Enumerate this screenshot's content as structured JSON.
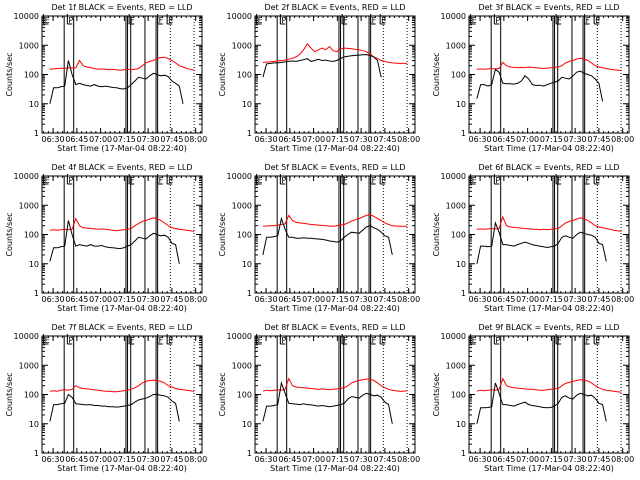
{
  "chart_data": {
    "type": "line",
    "layout": "3x3 grid",
    "y_scale": "log",
    "ylim": [
      1,
      10000
    ],
    "y_ticks": [
      "1",
      "10",
      "100",
      "1000",
      "10000"
    ],
    "ylabel": "Counts/sec",
    "xlabel": "Start Time (17-Mar-04 08:22:40)",
    "x_ticks": [
      "06:30",
      "06:45",
      "07:00",
      "07:15",
      "07:30",
      "07:45",
      "08:00"
    ],
    "x_tick_minutes": [
      390,
      405,
      420,
      435,
      450,
      465,
      480
    ],
    "xlim_minutes": [
      383,
      484
    ],
    "legend": {
      "black": "Events",
      "red": "LLD"
    },
    "series_colors": {
      "events": "#000000",
      "lld": "#ff0000"
    },
    "event_lines_minutes": [
      397,
      403,
      436,
      437,
      439,
      448,
      455,
      456
    ],
    "dotted_lines_minutes": [
      464,
      479
    ],
    "markers": [
      {
        "label": "E",
        "minute": 384
      },
      {
        "label": "P",
        "minute": 399
      },
      {
        "label": "F",
        "minute": 438
      },
      {
        "label": "F",
        "minute": 456
      },
      {
        "label": "E",
        "minute": 462
      }
    ],
    "panels": [
      {
        "title": "Det 1f BLACK = Events, RED = LLD",
        "lld": [
          150,
          155,
          160,
          165,
          160,
          170,
          165,
          170,
          300,
          200,
          180,
          170,
          160,
          150,
          155,
          150,
          145,
          150,
          145,
          140,
          145,
          150,
          145,
          150,
          160,
          200,
          250,
          280,
          300,
          350,
          380,
          390,
          350,
          300,
          250,
          200,
          180,
          160,
          150,
          140
        ],
        "events": [
          10,
          35,
          35,
          38,
          40,
          300,
          100,
          45,
          50,
          45,
          42,
          40,
          45,
          40,
          38,
          40,
          38,
          36,
          35,
          33,
          32,
          35,
          45,
          60,
          80,
          75,
          70,
          90,
          110,
          100,
          90,
          95,
          85,
          60,
          50,
          40,
          10,
          null,
          null,
          null
        ]
      },
      {
        "title": "Det 2f BLACK = Events, RED = LLD",
        "lld": [
          260,
          265,
          270,
          280,
          290,
          300,
          310,
          330,
          360,
          400,
          500,
          700,
          1100,
          800,
          600,
          700,
          800,
          700,
          900,
          650,
          600,
          750,
          800,
          780,
          760,
          720,
          700,
          650,
          600,
          500,
          400,
          350,
          300,
          280,
          260,
          250,
          245,
          240,
          240,
          240
        ],
        "events": [
          80,
          230,
          240,
          250,
          250,
          260,
          270,
          280,
          290,
          280,
          300,
          320,
          350,
          280,
          300,
          330,
          300,
          310,
          290,
          280,
          300,
          350,
          400,
          420,
          440,
          450,
          460,
          470,
          480,
          450,
          400,
          300,
          80,
          null,
          null,
          null,
          null,
          null,
          null,
          null
        ]
      },
      {
        "title": "Det 3f BLACK = Events, RED = LLD",
        "lld": [
          150,
          155,
          150,
          155,
          160,
          155,
          160,
          260,
          200,
          180,
          175,
          170,
          175,
          170,
          180,
          175,
          170,
          165,
          160,
          165,
          170,
          175,
          180,
          200,
          250,
          280,
          300,
          340,
          360,
          340,
          300,
          250,
          200,
          180,
          170,
          160,
          150,
          145,
          140,
          140
        ],
        "events": [
          15,
          45,
          45,
          40,
          45,
          150,
          120,
          50,
          48,
          48,
          47,
          50,
          60,
          90,
          70,
          45,
          42,
          43,
          40,
          45,
          50,
          55,
          60,
          80,
          75,
          70,
          90,
          120,
          130,
          110,
          100,
          90,
          70,
          50,
          12,
          null,
          null,
          null,
          null,
          null
        ]
      },
      {
        "title": "Det 4f BLACK = Events, RED = LLD",
        "lld": [
          140,
          145,
          140,
          145,
          150,
          145,
          150,
          350,
          200,
          170,
          165,
          160,
          155,
          150,
          155,
          150,
          145,
          140,
          135,
          140,
          145,
          150,
          160,
          200,
          240,
          280,
          300,
          340,
          370,
          350,
          300,
          250,
          200,
          170,
          160,
          150,
          145,
          140,
          135,
          130
        ],
        "events": [
          12,
          35,
          35,
          38,
          40,
          300,
          100,
          40,
          45,
          42,
          40,
          45,
          40,
          40,
          42,
          38,
          36,
          35,
          34,
          33,
          35,
          40,
          45,
          60,
          80,
          75,
          70,
          90,
          110,
          100,
          90,
          95,
          80,
          50,
          45,
          10,
          null,
          null,
          null,
          null
        ]
      },
      {
        "title": "Det 5f BLACK = Events, RED = LLD",
        "lld": [
          190,
          195,
          200,
          200,
          210,
          220,
          230,
          450,
          300,
          260,
          250,
          240,
          230,
          220,
          215,
          210,
          205,
          200,
          195,
          190,
          200,
          210,
          220,
          250,
          290,
          320,
          350,
          400,
          450,
          480,
          420,
          350,
          300,
          250,
          220,
          200,
          195,
          190,
          190,
          190
        ],
        "events": [
          20,
          80,
          80,
          85,
          90,
          350,
          150,
          80,
          80,
          75,
          75,
          78,
          75,
          74,
          72,
          70,
          68,
          65,
          60,
          58,
          55,
          60,
          80,
          100,
          120,
          115,
          110,
          140,
          180,
          200,
          170,
          150,
          120,
          90,
          80,
          20,
          null,
          null,
          null,
          null
        ]
      },
      {
        "title": "Det 6f BLACK = Events, RED = LLD",
        "lld": [
          150,
          155,
          150,
          155,
          160,
          155,
          160,
          400,
          200,
          180,
          175,
          170,
          165,
          160,
          155,
          150,
          150,
          145,
          150,
          145,
          150,
          155,
          160,
          200,
          250,
          280,
          300,
          340,
          370,
          350,
          300,
          250,
          200,
          180,
          170,
          160,
          150,
          140,
          135,
          130
        ],
        "events": [
          10,
          40,
          40,
          38,
          40,
          250,
          120,
          45,
          45,
          42,
          40,
          45,
          50,
          55,
          50,
          45,
          42,
          40,
          38,
          36,
          38,
          40,
          50,
          80,
          90,
          80,
          75,
          100,
          120,
          110,
          100,
          95,
          80,
          50,
          45,
          12,
          null,
          null,
          null,
          null
        ]
      },
      {
        "title": "Det 7f BLACK = Events, RED = LLD",
        "lld": [
          130,
          135,
          130,
          140,
          145,
          140,
          150,
          200,
          170,
          160,
          155,
          150,
          145,
          140,
          135,
          130,
          130,
          125,
          125,
          130,
          135,
          140,
          150,
          170,
          200,
          250,
          280,
          300,
          310,
          300,
          280,
          250,
          200,
          180,
          160,
          150,
          145,
          140,
          135,
          130
        ],
        "events": [
          12,
          45,
          45,
          48,
          50,
          100,
          80,
          48,
          47,
          45,
          44,
          45,
          42,
          42,
          40,
          40,
          38,
          38,
          37,
          38,
          40,
          42,
          45,
          55,
          65,
          70,
          75,
          85,
          100,
          100,
          95,
          90,
          80,
          60,
          50,
          12,
          null,
          null,
          null,
          null
        ]
      },
      {
        "title": "Det 8f BLACK = Events, RED = LLD",
        "lld": [
          130,
          140,
          135,
          140,
          145,
          140,
          150,
          350,
          200,
          180,
          175,
          170,
          165,
          160,
          155,
          150,
          155,
          150,
          145,
          150,
          155,
          160,
          170,
          200,
          250,
          280,
          300,
          320,
          340,
          330,
          300,
          250,
          200,
          170,
          150,
          140,
          135,
          130,
          130,
          135
        ],
        "events": [
          12,
          40,
          40,
          42,
          45,
          250,
          110,
          50,
          48,
          47,
          45,
          48,
          45,
          44,
          42,
          40,
          42,
          40,
          38,
          40,
          42,
          45,
          50,
          70,
          85,
          80,
          75,
          95,
          110,
          100,
          90,
          95,
          80,
          55,
          45,
          10,
          null,
          null,
          null,
          null
        ]
      },
      {
        "title": "Det 9f BLACK = Events, RED = LLD",
        "lld": [
          130,
          140,
          135,
          140,
          145,
          140,
          150,
          350,
          200,
          180,
          170,
          165,
          160,
          155,
          150,
          150,
          145,
          140,
          140,
          145,
          150,
          155,
          160,
          200,
          240,
          260,
          280,
          300,
          320,
          310,
          290,
          250,
          200,
          170,
          150,
          140,
          135,
          130,
          125,
          120
        ],
        "events": [
          10,
          35,
          35,
          36,
          38,
          250,
          110,
          45,
          45,
          42,
          40,
          45,
          50,
          55,
          45,
          42,
          40,
          38,
          36,
          35,
          36,
          40,
          50,
          80,
          90,
          75,
          70,
          95,
          110,
          100,
          90,
          95,
          75,
          50,
          45,
          12,
          null,
          null,
          null,
          null
        ]
      }
    ]
  }
}
